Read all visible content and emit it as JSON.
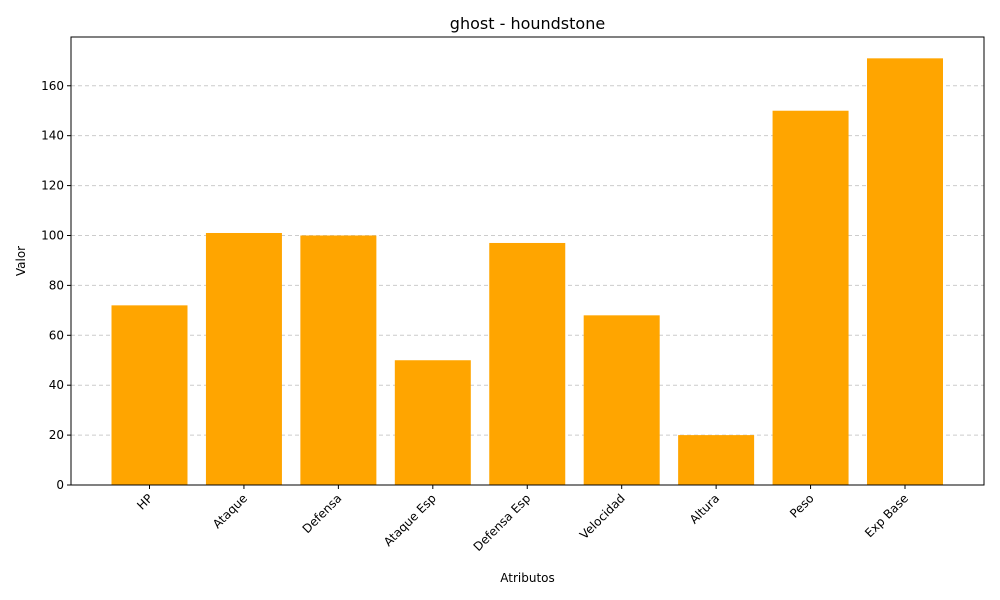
{
  "chart_data": {
    "type": "bar",
    "title": "ghost - houndstone",
    "xlabel": "Atributos",
    "ylabel": "Valor",
    "categories": [
      "HP",
      "Ataque",
      "Defensa",
      "Ataque Esp",
      "Defensa Esp",
      "Velocidad",
      "Altura",
      "Peso",
      "Exp Base"
    ],
    "values": [
      72,
      101,
      100,
      50,
      97,
      68,
      20,
      150,
      171
    ],
    "ylim": [
      0,
      179.55
    ],
    "yticks": [
      0,
      20,
      40,
      60,
      80,
      100,
      120,
      140,
      160
    ],
    "bar_color": "#FFA500",
    "grid": "horizontal dashed",
    "x_tick_rotation": 45
  }
}
